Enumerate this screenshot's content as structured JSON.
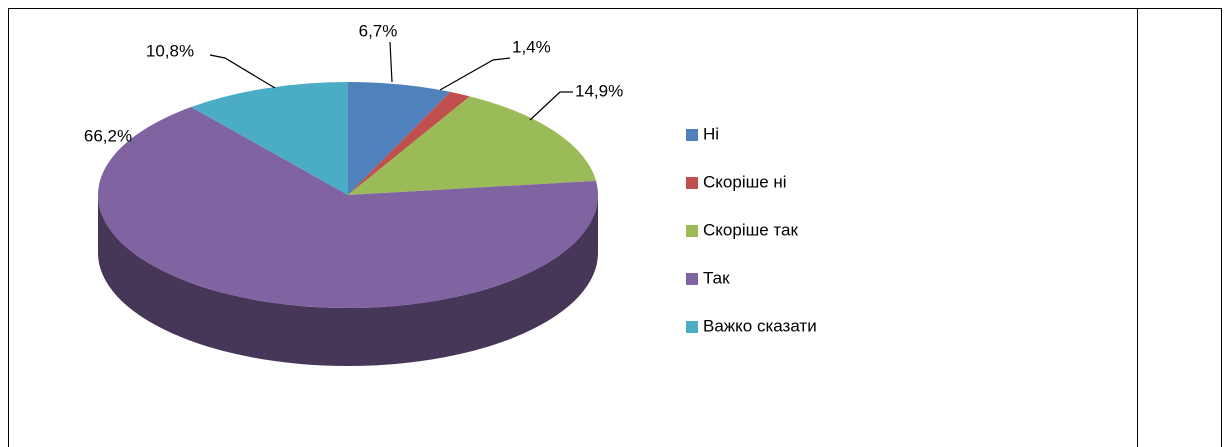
{
  "chart_data": {
    "type": "pie",
    "categories": [
      "Ні",
      "Скоріше ні",
      "Скоріше так",
      "Так",
      "Важко сказати"
    ],
    "values": [
      6.7,
      1.4,
      14.9,
      66.2,
      10.8
    ],
    "value_labels": [
      "6,7%",
      "1,4%",
      "14,9%",
      "66,2%",
      "10,8%"
    ],
    "colors": [
      "#4f81bd",
      "#c0504d",
      "#9bbb59",
      "#8064a2",
      "#4bacc6"
    ],
    "legend": "right"
  }
}
